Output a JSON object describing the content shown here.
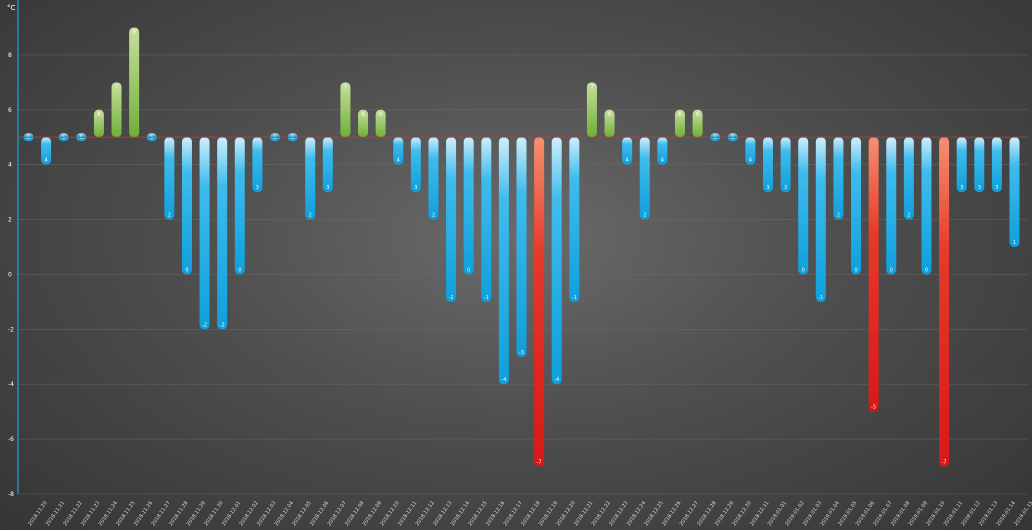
{
  "chart_data": {
    "type": "bar",
    "unit_label": "°C",
    "baseline": 5,
    "ylim": [
      -8,
      10
    ],
    "y_ticks": [
      -8,
      -6,
      -4,
      -2,
      0,
      2,
      4,
      6,
      8
    ],
    "grid": true,
    "colors": {
      "above": "#7ab640",
      "below": "#18a7e0",
      "extreme": "#e02020",
      "baseline": "#d83030",
      "axis": "#1aa0d8"
    },
    "categories": [
      "2018.11.20",
      "2018.11.21",
      "2018.11.22",
      "2018.11.23",
      "2018.11.24",
      "2018.11.25",
      "2018.11.26",
      "2018.11.27",
      "2018.11.28",
      "2018.11.29",
      "2018.11.30",
      "2018.12.01",
      "2018.12.02",
      "2018.12.03",
      "2018.12.04",
      "2018.12.05",
      "2018.12.06",
      "2018.12.07",
      "2018.12.08",
      "2018.12.09",
      "2018.12.10",
      "2018.12.11",
      "2018.12.12",
      "2018.12.13",
      "2018.12.14",
      "2018.12.15",
      "2018.12.16",
      "2018.12.17",
      "2018.12.18",
      "2018.12.19",
      "2018.12.20",
      "2018.12.21",
      "2018.12.22",
      "2018.12.23",
      "2018.12.24",
      "2018.12.25",
      "2018.12.26",
      "2018.12.27",
      "2018.12.28",
      "2018.12.29",
      "2018.12.30",
      "2018.12.31",
      "2019.01.01",
      "2019.01.02",
      "2019.01.03",
      "2019.01.04",
      "2019.01.05",
      "2019.01.06",
      "2019.01.07",
      "2019.01.08",
      "2019.01.09",
      "2019.01.10",
      "2019.01.11",
      "2019.01.12",
      "2019.01.13",
      "2019.01.14",
      "2019.01.15"
    ],
    "values": [
      5,
      4,
      5,
      5,
      6,
      7,
      9,
      5,
      2,
      0,
      -2,
      -2,
      0,
      3,
      5,
      5,
      2,
      3,
      7,
      6,
      6,
      4,
      3,
      2,
      -1,
      0,
      -1,
      -4,
      -3,
      -7,
      -4,
      -1,
      7,
      6,
      4,
      2,
      4,
      6,
      6,
      5,
      5,
      4,
      3,
      3,
      0,
      -1,
      2,
      0,
      -5,
      0,
      2,
      0,
      -7,
      3,
      3,
      3,
      1
    ],
    "value_labels": [
      "5",
      "4",
      "5",
      "5",
      "6",
      "7",
      "9",
      "5",
      "2",
      "0",
      "-2",
      "-2",
      "0",
      "3",
      "5",
      "5",
      "2",
      "3",
      "7",
      "6",
      "6",
      "4",
      "3",
      "2",
      "-1",
      "0",
      "-1",
      "-4",
      "-3",
      "-7",
      "-4",
      "-1",
      "7",
      "6",
      "4",
      "2",
      "4",
      "6",
      "6",
      "5",
      "5",
      "4",
      "3",
      "3",
      "0",
      "-1",
      "2",
      "0",
      "-5",
      "0",
      "2",
      "0",
      "-7",
      "3",
      "3",
      "3",
      "1"
    ],
    "extreme_indices": [
      29,
      48,
      52
    ]
  }
}
